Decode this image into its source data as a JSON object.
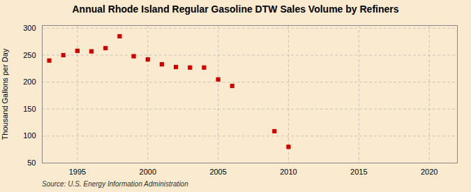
{
  "chart_data": {
    "type": "scatter",
    "title": "Annual Rhode Island Regular Gasoline DTW Sales Volume by Refiners",
    "ylabel": "Thousand Gallons per Day",
    "source": "Source: U.S. Energy Information Administration",
    "x": [
      1993,
      1994,
      1995,
      1996,
      1997,
      1998,
      1999,
      2000,
      2001,
      2002,
      2003,
      2004,
      2005,
      2006,
      2009,
      2010
    ],
    "values": [
      240,
      250,
      258,
      257,
      263,
      285,
      248,
      242,
      233,
      228,
      227,
      227,
      205,
      193,
      109,
      80
    ],
    "color": "#cc0000",
    "marker": "square",
    "xlim": [
      1992.5,
      2022
    ],
    "ylim": [
      50,
      305
    ],
    "xticks": [
      1995,
      2000,
      2005,
      2010,
      2015,
      2020
    ],
    "yticks": [
      50,
      100,
      150,
      200,
      250,
      300
    ],
    "grid": true
  }
}
